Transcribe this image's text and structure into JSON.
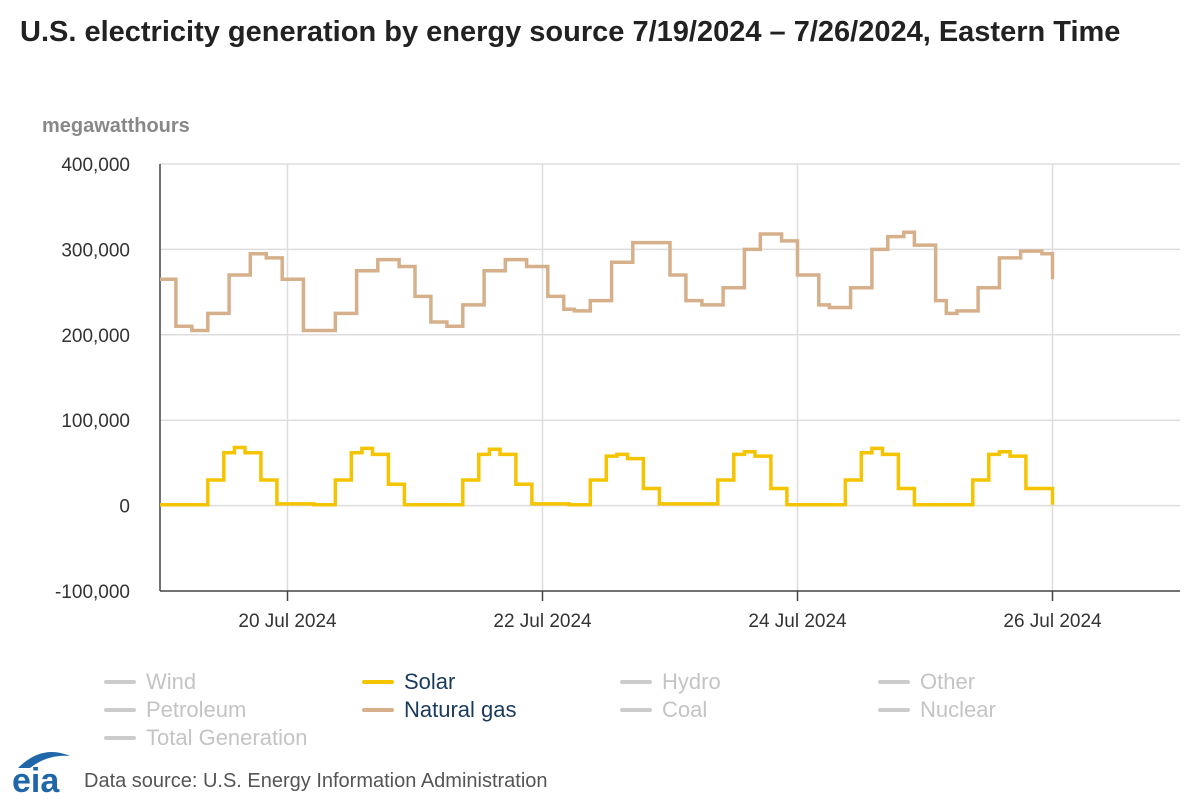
{
  "header": {
    "title": "U.S. electricity generation by energy source 7/19/2024 – 7/26/2024, Eastern Time"
  },
  "footer": {
    "source": "Data source: U.S. Energy Information Administration",
    "logo_text": "eia"
  },
  "colors": {
    "solar": "#f5c400",
    "natural_gas": "#d6b08a",
    "inactive": "#cccccc",
    "active_text": "#1a3a5c",
    "inactive_text": "#c4c4c4",
    "grid": "#dddddd",
    "logo_blue": "#1f67a8"
  },
  "legend": [
    {
      "name": "Wind",
      "active": false
    },
    {
      "name": "Solar",
      "active": true,
      "color": "#f5c400"
    },
    {
      "name": "Hydro",
      "active": false
    },
    {
      "name": "Other",
      "active": false
    },
    {
      "name": "Petroleum",
      "active": false
    },
    {
      "name": "Natural gas",
      "active": true,
      "color": "#d6b08a"
    },
    {
      "name": "Coal",
      "active": false
    },
    {
      "name": "Nuclear",
      "active": false
    },
    {
      "name": "Total Generation",
      "active": false
    }
  ],
  "chart_data": {
    "type": "line",
    "title": "U.S. electricity generation by energy source 7/19/2024 – 7/26/2024, Eastern Time",
    "ylabel": "megawatthours",
    "ylim": [
      -100000,
      400000
    ],
    "yticks": [
      -100000,
      0,
      100000,
      200000,
      300000,
      400000
    ],
    "ytick_labels": [
      "-100,000",
      "0",
      "100,000",
      "200,000",
      "300,000",
      "400,000"
    ],
    "xlim": [
      "2024-07-19T00:00",
      "2024-07-27T00:00"
    ],
    "xticks": [
      "2024-07-20",
      "2024-07-22",
      "2024-07-24",
      "2024-07-26"
    ],
    "xtick_labels": [
      "20 Jul 2024",
      "22 Jul 2024",
      "24 Jul 2024",
      "26 Jul 2024"
    ],
    "grid": true,
    "step": true,
    "legend_position": "bottom",
    "series": [
      {
        "name": "Natural gas",
        "color": "#d6b08a",
        "points": [
          [
            "2024-07-19T00:00",
            265000
          ],
          [
            "2024-07-19T03:00",
            210000
          ],
          [
            "2024-07-19T06:00",
            205000
          ],
          [
            "2024-07-19T09:00",
            225000
          ],
          [
            "2024-07-19T13:00",
            270000
          ],
          [
            "2024-07-19T17:00",
            295000
          ],
          [
            "2024-07-19T20:00",
            290000
          ],
          [
            "2024-07-19T23:00",
            265000
          ],
          [
            "2024-07-20T03:00",
            205000
          ],
          [
            "2024-07-20T06:00",
            205000
          ],
          [
            "2024-07-20T09:00",
            225000
          ],
          [
            "2024-07-20T13:00",
            275000
          ],
          [
            "2024-07-20T17:00",
            288000
          ],
          [
            "2024-07-20T21:00",
            280000
          ],
          [
            "2024-07-21T00:00",
            245000
          ],
          [
            "2024-07-21T03:00",
            215000
          ],
          [
            "2024-07-21T06:00",
            210000
          ],
          [
            "2024-07-21T09:00",
            235000
          ],
          [
            "2024-07-21T13:00",
            275000
          ],
          [
            "2024-07-21T17:00",
            288000
          ],
          [
            "2024-07-21T21:00",
            280000
          ],
          [
            "2024-07-22T01:00",
            245000
          ],
          [
            "2024-07-22T04:00",
            230000
          ],
          [
            "2024-07-22T06:00",
            228000
          ],
          [
            "2024-07-22T09:00",
            240000
          ],
          [
            "2024-07-22T13:00",
            285000
          ],
          [
            "2024-07-22T17:00",
            308000
          ],
          [
            "2024-07-22T20:00",
            308000
          ],
          [
            "2024-07-23T00:00",
            270000
          ],
          [
            "2024-07-23T03:00",
            240000
          ],
          [
            "2024-07-23T06:00",
            235000
          ],
          [
            "2024-07-23T10:00",
            255000
          ],
          [
            "2024-07-23T14:00",
            300000
          ],
          [
            "2024-07-23T17:00",
            318000
          ],
          [
            "2024-07-23T21:00",
            310000
          ],
          [
            "2024-07-24T00:00",
            270000
          ],
          [
            "2024-07-24T04:00",
            235000
          ],
          [
            "2024-07-24T06:00",
            232000
          ],
          [
            "2024-07-24T10:00",
            255000
          ],
          [
            "2024-07-24T14:00",
            300000
          ],
          [
            "2024-07-24T17:00",
            315000
          ],
          [
            "2024-07-24T20:00",
            320000
          ],
          [
            "2024-07-24T22:00",
            305000
          ],
          [
            "2024-07-25T02:00",
            240000
          ],
          [
            "2024-07-25T04:00",
            225000
          ],
          [
            "2024-07-25T06:00",
            228000
          ],
          [
            "2024-07-25T10:00",
            255000
          ],
          [
            "2024-07-25T14:00",
            290000
          ],
          [
            "2024-07-25T18:00",
            298000
          ],
          [
            "2024-07-25T22:00",
            295000
          ],
          [
            "2024-07-26T00:00",
            265000
          ]
        ]
      },
      {
        "name": "Solar",
        "color": "#f5c400",
        "points": [
          [
            "2024-07-19T00:00",
            1000
          ],
          [
            "2024-07-19T05:00",
            1000
          ],
          [
            "2024-07-19T09:00",
            30000
          ],
          [
            "2024-07-19T12:00",
            62000
          ],
          [
            "2024-07-19T14:00",
            68000
          ],
          [
            "2024-07-19T16:00",
            62000
          ],
          [
            "2024-07-19T19:00",
            30000
          ],
          [
            "2024-07-19T22:00",
            2000
          ],
          [
            "2024-07-20T05:00",
            1000
          ],
          [
            "2024-07-20T09:00",
            30000
          ],
          [
            "2024-07-20T12:00",
            62000
          ],
          [
            "2024-07-20T14:00",
            67000
          ],
          [
            "2024-07-20T16:00",
            60000
          ],
          [
            "2024-07-20T19:00",
            25000
          ],
          [
            "2024-07-20T22:00",
            1000
          ],
          [
            "2024-07-21T05:00",
            1000
          ],
          [
            "2024-07-21T09:00",
            30000
          ],
          [
            "2024-07-21T12:00",
            60000
          ],
          [
            "2024-07-21T14:00",
            66000
          ],
          [
            "2024-07-21T16:00",
            60000
          ],
          [
            "2024-07-21T19:00",
            25000
          ],
          [
            "2024-07-21T22:00",
            2000
          ],
          [
            "2024-07-22T05:00",
            1000
          ],
          [
            "2024-07-22T09:00",
            30000
          ],
          [
            "2024-07-22T12:00",
            58000
          ],
          [
            "2024-07-22T14:00",
            60000
          ],
          [
            "2024-07-22T16:00",
            55000
          ],
          [
            "2024-07-22T19:00",
            20000
          ],
          [
            "2024-07-22T22:00",
            2000
          ],
          [
            "2024-07-23T05:00",
            2000
          ],
          [
            "2024-07-23T09:00",
            30000
          ],
          [
            "2024-07-23T12:00",
            60000
          ],
          [
            "2024-07-23T14:00",
            63000
          ],
          [
            "2024-07-23T16:00",
            58000
          ],
          [
            "2024-07-23T19:00",
            20000
          ],
          [
            "2024-07-23T22:00",
            1000
          ],
          [
            "2024-07-24T05:00",
            1000
          ],
          [
            "2024-07-24T09:00",
            30000
          ],
          [
            "2024-07-24T12:00",
            62000
          ],
          [
            "2024-07-24T14:00",
            67000
          ],
          [
            "2024-07-24T16:00",
            60000
          ],
          [
            "2024-07-24T19:00",
            20000
          ],
          [
            "2024-07-24T22:00",
            1000
          ],
          [
            "2024-07-25T05:00",
            1000
          ],
          [
            "2024-07-25T09:00",
            30000
          ],
          [
            "2024-07-25T12:00",
            60000
          ],
          [
            "2024-07-25T14:00",
            63000
          ],
          [
            "2024-07-25T16:00",
            58000
          ],
          [
            "2024-07-25T19:00",
            20000
          ],
          [
            "2024-07-26T00:00",
            1000
          ]
        ]
      }
    ]
  }
}
